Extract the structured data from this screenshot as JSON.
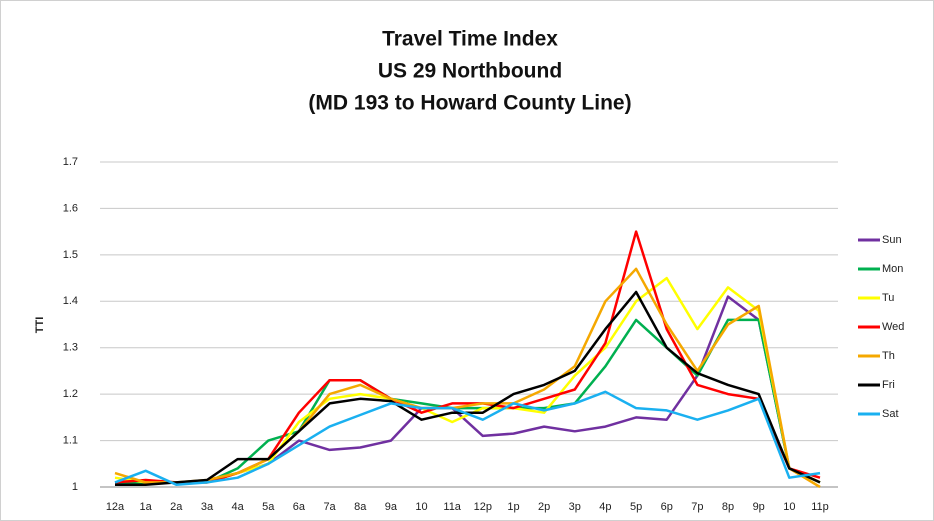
{
  "chart_data": {
    "type": "line",
    "title": [
      "Travel Time Index",
      "US 29 Northbound",
      "(MD 193 to Howard County Line)"
    ],
    "y_label": "TTI",
    "categories": [
      "12a",
      "1a",
      "2a",
      "3a",
      "4a",
      "5a",
      "6a",
      "7a",
      "8a",
      "9a",
      "10",
      "11a",
      "12p",
      "1p",
      "2p",
      "3p",
      "4p",
      "5p",
      "6p",
      "7p",
      "8p",
      "9p",
      "10",
      "11p"
    ],
    "ylim": [
      1,
      1.7
    ],
    "yticks": [
      1,
      1.1,
      1.2,
      1.3,
      1.4,
      1.5,
      1.6,
      1.7
    ],
    "grid": true,
    "legend": "right",
    "series": [
      {
        "name": "Sun",
        "color": "#7030a0",
        "values": [
          1.01,
          1.01,
          1.01,
          1.01,
          1.03,
          1.05,
          1.1,
          1.08,
          1.085,
          1.1,
          1.17,
          1.17,
          1.11,
          1.115,
          1.13,
          1.12,
          1.13,
          1.15,
          1.145,
          1.24,
          1.41,
          1.36,
          1.04,
          1.01
        ]
      },
      {
        "name": "Mon",
        "color": "#00b050",
        "values": [
          1.01,
          1.01,
          1.01,
          1.01,
          1.04,
          1.1,
          1.12,
          1.23,
          1.23,
          1.19,
          1.18,
          1.17,
          1.17,
          1.17,
          1.17,
          1.18,
          1.26,
          1.36,
          1.3,
          1.24,
          1.36,
          1.36,
          1.04,
          1.01
        ]
      },
      {
        "name": "Tu",
        "color": "#ffff00",
        "values": [
          1.02,
          1.01,
          1.01,
          1.01,
          1.03,
          1.05,
          1.14,
          1.19,
          1.2,
          1.19,
          1.17,
          1.14,
          1.17,
          1.17,
          1.16,
          1.24,
          1.3,
          1.4,
          1.45,
          1.34,
          1.43,
          1.38,
          1.04,
          1.01
        ]
      },
      {
        "name": "Wed",
        "color": "#ff0000",
        "values": [
          1.01,
          1.015,
          1.01,
          1.01,
          1.03,
          1.06,
          1.16,
          1.23,
          1.23,
          1.19,
          1.16,
          1.18,
          1.18,
          1.17,
          1.19,
          1.21,
          1.31,
          1.55,
          1.34,
          1.22,
          1.2,
          1.19,
          1.04,
          1.02
        ]
      },
      {
        "name": "Th",
        "color": "#f5a800",
        "values": [
          1.03,
          1.01,
          1.01,
          1.015,
          1.03,
          1.06,
          1.12,
          1.2,
          1.22,
          1.19,
          1.17,
          1.17,
          1.18,
          1.18,
          1.21,
          1.26,
          1.4,
          1.47,
          1.35,
          1.25,
          1.35,
          1.39,
          1.04,
          1
        ]
      },
      {
        "name": "Fri",
        "color": "#000000",
        "values": [
          1.005,
          1.005,
          1.01,
          1.015,
          1.06,
          1.06,
          1.12,
          1.18,
          1.19,
          1.185,
          1.145,
          1.16,
          1.16,
          1.2,
          1.22,
          1.25,
          1.34,
          1.42,
          1.3,
          1.245,
          1.22,
          1.2,
          1.04,
          1.01
        ]
      },
      {
        "name": "Sat",
        "color": "#1ab0f0",
        "values": [
          1.01,
          1.035,
          1.005,
          1.01,
          1.02,
          1.05,
          1.09,
          1.13,
          1.155,
          1.18,
          1.17,
          1.17,
          1.145,
          1.18,
          1.165,
          1.18,
          1.205,
          1.17,
          1.165,
          1.145,
          1.165,
          1.19,
          1.02,
          1.03
        ]
      }
    ]
  }
}
